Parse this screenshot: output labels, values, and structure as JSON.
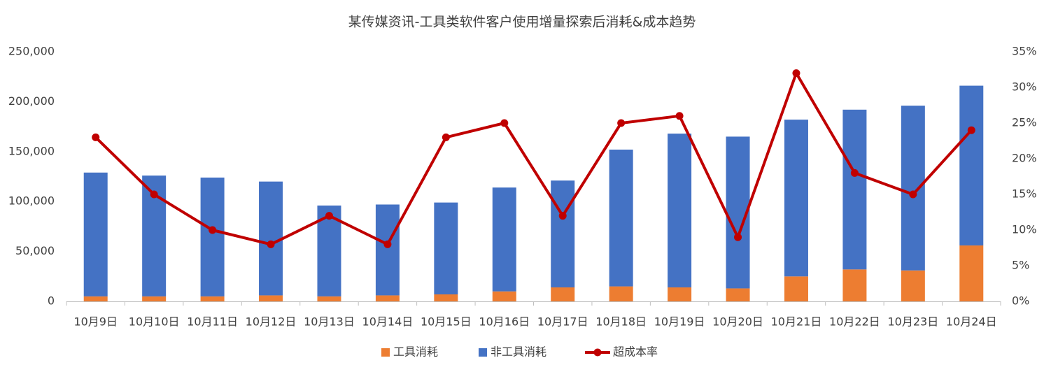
{
  "chart_data": {
    "type": "bar",
    "stacked": true,
    "title": "某传媒资讯-工具类软件客户使用增量探索后消耗&成本趋势",
    "categories": [
      "10月9日",
      "10月10日",
      "10月11日",
      "10月12日",
      "10月13日",
      "10月14日",
      "10月15日",
      "10月16日",
      "10月17日",
      "10月18日",
      "10月19日",
      "10月20日",
      "10月21日",
      "10月22日",
      "10月23日",
      "10月24日"
    ],
    "series": [
      {
        "name": "工具消耗",
        "type": "bar",
        "color": "#ed7d31",
        "values": [
          5000,
          5000,
          5000,
          6000,
          5000,
          6000,
          7000,
          10000,
          14000,
          15000,
          14000,
          13000,
          25000,
          32000,
          31000,
          56000
        ]
      },
      {
        "name": "非工具消耗",
        "type": "bar",
        "color": "#4472c4",
        "values": [
          124000,
          121000,
          119000,
          114000,
          91000,
          91000,
          92000,
          104000,
          107000,
          137000,
          154000,
          152000,
          157000,
          160000,
          165000,
          160000
        ]
      },
      {
        "name": "超成本率",
        "type": "line",
        "axis": "y2",
        "color": "#c00000",
        "values": [
          23,
          15,
          10,
          8,
          12,
          8,
          23,
          25,
          12,
          25,
          26,
          9,
          32,
          18,
          15,
          24
        ]
      }
    ],
    "ylim": [
      0,
      250000
    ],
    "yticks": [
      0,
      {
        "value": 50000,
        "label": "50,000"
      },
      {
        "value": 100000,
        "label": "100,000"
      },
      {
        "value": 150000,
        "label": "150,000"
      },
      {
        "value": 200000,
        "label": "200,000"
      },
      {
        "value": 250000,
        "label": "250,000"
      }
    ],
    "y2lim": [
      0,
      35
    ],
    "y2ticks": [
      {
        "value": 0,
        "label": "0%"
      },
      {
        "value": 5,
        "label": "5%"
      },
      {
        "value": 10,
        "label": "10%"
      },
      {
        "value": 15,
        "label": "15%"
      },
      {
        "value": 20,
        "label": "20%"
      },
      {
        "value": 25,
        "label": "25%"
      },
      {
        "value": 30,
        "label": "30%"
      },
      {
        "value": 35,
        "label": "35%"
      }
    ],
    "grid": false,
    "legend": "bottom"
  }
}
